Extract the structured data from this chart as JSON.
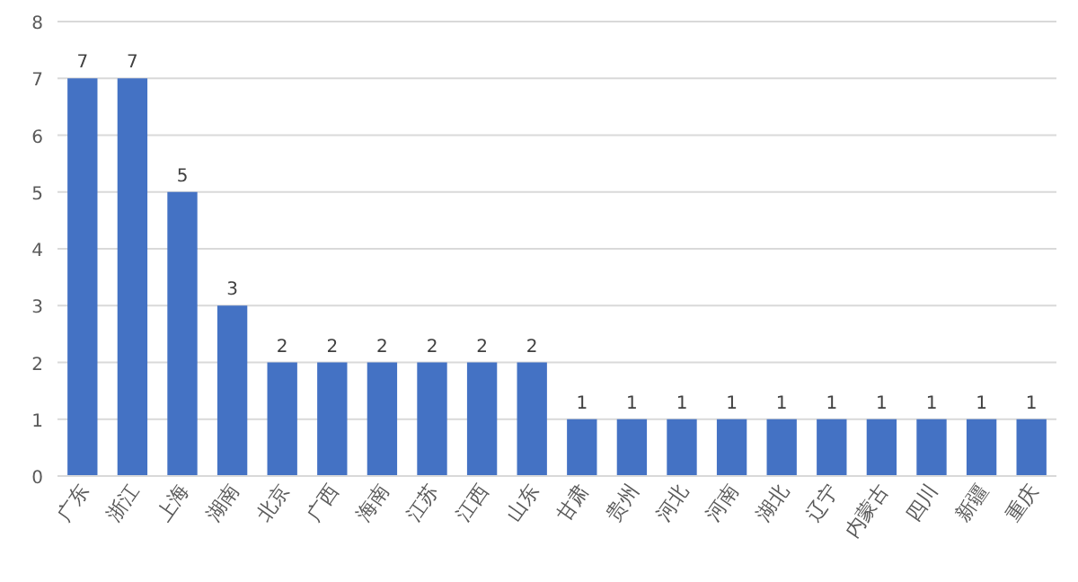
{
  "chart_data": {
    "type": "bar",
    "categories": [
      "广东",
      "浙江",
      "上海",
      "湖南",
      "北京",
      "广西",
      "海南",
      "江苏",
      "江西",
      "山东",
      "甘肃",
      "贵州",
      "河北",
      "河南",
      "湖北",
      "辽宁",
      "内蒙古",
      "四川",
      "新疆",
      "重庆"
    ],
    "values": [
      7,
      7,
      5,
      3,
      2,
      2,
      2,
      2,
      2,
      2,
      1,
      1,
      1,
      1,
      1,
      1,
      1,
      1,
      1,
      1
    ],
    "color": "#4472c4",
    "ylim": [
      0,
      8
    ],
    "yticks": [
      0,
      1,
      2,
      3,
      4,
      5,
      6,
      7,
      8
    ],
    "grid": "y",
    "data_labels": true
  }
}
